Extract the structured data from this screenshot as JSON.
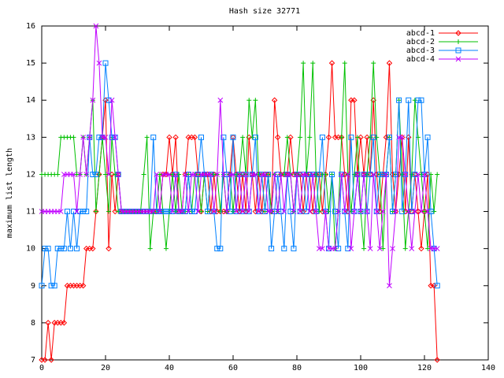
{
  "chart_data": {
    "type": "line",
    "title": "Hash size 32771",
    "y_label": "maximum list length",
    "x": [
      0,
      1,
      2,
      3,
      4,
      5,
      6,
      7,
      8,
      9,
      10,
      11,
      12,
      13,
      14,
      15,
      16,
      17,
      18,
      19,
      20,
      21,
      22,
      23,
      24,
      25,
      26,
      27,
      28,
      29,
      30,
      31,
      32,
      33,
      34,
      35,
      36,
      37,
      38,
      39,
      40,
      41,
      42,
      43,
      44,
      45,
      46,
      47,
      48,
      49,
      50,
      51,
      52,
      53,
      54,
      55,
      56,
      57,
      58,
      59,
      60,
      61,
      62,
      63,
      64,
      65,
      66,
      67,
      68,
      69,
      70,
      71,
      72,
      73,
      74,
      75,
      76,
      77,
      78,
      79,
      80,
      81,
      82,
      83,
      84,
      85,
      86,
      87,
      88,
      89,
      90,
      91,
      92,
      93,
      94,
      95,
      96,
      97,
      98,
      99,
      100,
      101,
      102,
      103,
      104,
      105,
      106,
      107,
      108,
      109,
      110,
      111,
      112,
      113,
      114,
      115,
      116,
      117,
      118,
      119,
      120,
      121,
      122,
      123,
      124
    ],
    "series": [
      {
        "name": "abcd-1",
        "color": "#ff0000",
        "marker": "diamond",
        "values": [
          7,
          7,
          8,
          7,
          8,
          8,
          8,
          8,
          9,
          9,
          9,
          9,
          9,
          9,
          10,
          10,
          10,
          11,
          12,
          13,
          14,
          10,
          12,
          11,
          12,
          11,
          11,
          11,
          11,
          11,
          11,
          11,
          11,
          11,
          11,
          11,
          11,
          11,
          12,
          12,
          13,
          12,
          13,
          11,
          11,
          12,
          13,
          13,
          13,
          12,
          11,
          12,
          12,
          11,
          12,
          11,
          11,
          11,
          11,
          12,
          13,
          12,
          11,
          12,
          11,
          13,
          12,
          11,
          12,
          11,
          12,
          12,
          11,
          14,
          13,
          12,
          12,
          12,
          13,
          12,
          12,
          12,
          11,
          12,
          12,
          11,
          12,
          12,
          11,
          12,
          13,
          15,
          13,
          13,
          13,
          12,
          11,
          14,
          14,
          12,
          13,
          12,
          13,
          12,
          14,
          12,
          11,
          12,
          13,
          15,
          12,
          11,
          12,
          13,
          11,
          13,
          11,
          12,
          11,
          10,
          11,
          12,
          9,
          9,
          7
        ]
      },
      {
        "name": "abcd-2",
        "color": "#00c000",
        "marker": "plus",
        "values": [
          12,
          12,
          12,
          12,
          12,
          12,
          13,
          13,
          13,
          13,
          13,
          12,
          12,
          13,
          12,
          13,
          14,
          11,
          12,
          13,
          12,
          11,
          13,
          12,
          11,
          11,
          11,
          11,
          11,
          11,
          11,
          11,
          12,
          13,
          10,
          11,
          11,
          12,
          11,
          10,
          11,
          12,
          11,
          12,
          11,
          11,
          12,
          11,
          12,
          12,
          11,
          12,
          11,
          12,
          12,
          12,
          11,
          12,
          11,
          12,
          11,
          12,
          12,
          13,
          12,
          14,
          13,
          14,
          12,
          12,
          11,
          12,
          11,
          12,
          11,
          12,
          12,
          13,
          12,
          11,
          12,
          13,
          15,
          12,
          13,
          15,
          12,
          11,
          12,
          12,
          11,
          12,
          10,
          11,
          13,
          15,
          12,
          11,
          12,
          13,
          11,
          10,
          12,
          13,
          15,
          13,
          12,
          10,
          12,
          13,
          11,
          12,
          14,
          12,
          10,
          11,
          12,
          14,
          13,
          12,
          11,
          10,
          12,
          11,
          12
        ]
      },
      {
        "name": "abcd-3",
        "color": "#0080ff",
        "marker": "square",
        "values": [
          9,
          10,
          10,
          9,
          9,
          10,
          10,
          10,
          11,
          10,
          11,
          10,
          11,
          11,
          11,
          13,
          12,
          12,
          13,
          13,
          15,
          14,
          13,
          13,
          12,
          11,
          11,
          11,
          11,
          11,
          11,
          11,
          11,
          11,
          11,
          13,
          11,
          11,
          11,
          11,
          11,
          11,
          12,
          11,
          11,
          11,
          12,
          11,
          11,
          12,
          13,
          12,
          11,
          12,
          11,
          10,
          10,
          13,
          12,
          11,
          13,
          11,
          12,
          11,
          12,
          11,
          12,
          13,
          11,
          12,
          11,
          12,
          10,
          11,
          12,
          11,
          10,
          12,
          11,
          10,
          12,
          11,
          12,
          11,
          12,
          12,
          11,
          12,
          13,
          11,
          10,
          12,
          11,
          10,
          12,
          11,
          10,
          13,
          11,
          12,
          11,
          12,
          11,
          12,
          13,
          11,
          12,
          12,
          12,
          13,
          11,
          12,
          14,
          11,
          12,
          14,
          11,
          12,
          14,
          14,
          12,
          13,
          11,
          10,
          9
        ]
      },
      {
        "name": "abcd-4",
        "color": "#c000ff",
        "marker": "cross",
        "values": [
          11,
          11,
          11,
          11,
          11,
          11,
          11,
          12,
          12,
          12,
          12,
          11,
          12,
          13,
          12,
          13,
          14,
          16,
          15,
          13,
          13,
          12,
          14,
          13,
          12,
          11,
          11,
          11,
          11,
          11,
          11,
          11,
          11,
          11,
          11,
          11,
          12,
          11,
          12,
          12,
          12,
          11,
          12,
          11,
          11,
          12,
          11,
          12,
          12,
          11,
          12,
          12,
          12,
          12,
          11,
          12,
          14,
          12,
          11,
          12,
          12,
          11,
          12,
          11,
          12,
          11,
          12,
          12,
          11,
          12,
          12,
          11,
          11,
          12,
          11,
          12,
          11,
          12,
          12,
          11,
          12,
          11,
          12,
          12,
          11,
          12,
          11,
          10,
          10,
          11,
          10,
          10,
          10,
          11,
          12,
          11,
          12,
          10,
          11,
          12,
          11,
          12,
          11,
          10,
          12,
          11,
          10,
          11,
          12,
          9,
          10,
          11,
          13,
          13,
          12,
          11,
          10,
          11,
          12,
          11,
          12,
          11,
          10,
          10,
          10
        ]
      }
    ],
    "xlim": [
      0,
      140
    ],
    "xticks": [
      0,
      20,
      40,
      60,
      80,
      100,
      120,
      140
    ],
    "ylim": [
      7,
      16
    ],
    "yticks": [
      7,
      8,
      9,
      10,
      11,
      12,
      13,
      14,
      15,
      16
    ],
    "legend": "top-right"
  }
}
